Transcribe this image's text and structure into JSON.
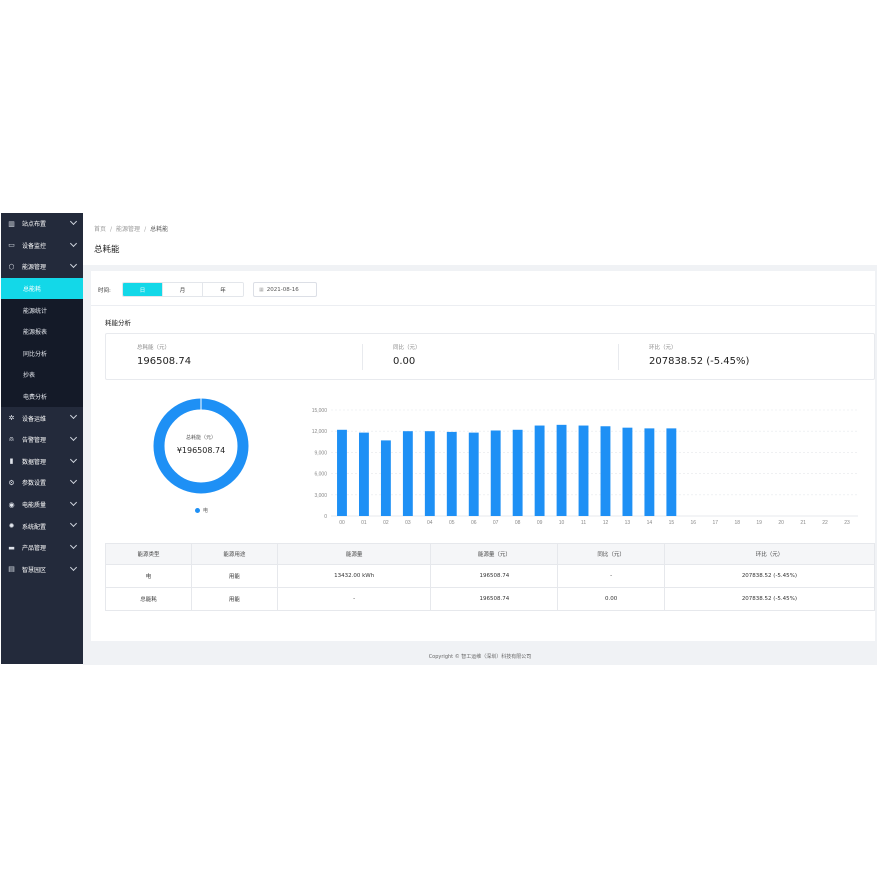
{
  "sidebar": {
    "items": [
      {
        "label": "站点布置",
        "icon": "chart-icon"
      },
      {
        "label": "设备监控",
        "icon": "monitor-icon"
      },
      {
        "label": "能源管理",
        "icon": "energy-icon",
        "open": true,
        "children": [
          "总能耗",
          "能源统计",
          "能源报表",
          "同比分析",
          "抄表",
          "电费分析"
        ]
      },
      {
        "label": "设备运维",
        "icon": "gear-icon"
      },
      {
        "label": "告警管理",
        "icon": "bell-icon"
      },
      {
        "label": "数据管理",
        "icon": "bar-icon"
      },
      {
        "label": "参数设置",
        "icon": "settings-icon"
      },
      {
        "label": "电能质量",
        "icon": "power-icon"
      },
      {
        "label": "系统配置",
        "icon": "cog-icon"
      },
      {
        "label": "产品管理",
        "icon": "box-icon"
      },
      {
        "label": "智慧园区",
        "icon": "building-icon"
      }
    ],
    "active_child": "总能耗"
  },
  "breadcrumb": [
    "首页",
    "能源管理",
    "总耗能"
  ],
  "page_title": "总耗能",
  "filter": {
    "label": "时间:",
    "options": [
      "日",
      "月",
      "年"
    ],
    "selected": "日",
    "date": "2021-08-16"
  },
  "section_title": "耗能分析",
  "stats": [
    {
      "label": "总耗能（元）",
      "value": "196508.74"
    },
    {
      "label": "同比（元）",
      "value": "0.00"
    },
    {
      "label": "环比（元）",
      "value": "207838.52 (-5.45%)"
    }
  ],
  "donut": {
    "label": "总耗能（元）",
    "value": "¥196508.74",
    "legend": "电",
    "color": "#1e90f5"
  },
  "chart_data": {
    "type": "bar",
    "categories": [
      "00",
      "01",
      "02",
      "03",
      "04",
      "05",
      "06",
      "07",
      "08",
      "09",
      "10",
      "11",
      "12",
      "13",
      "14",
      "15",
      "16",
      "17",
      "18",
      "19",
      "20",
      "21",
      "22",
      "23"
    ],
    "values": [
      12200,
      11800,
      10700,
      12000,
      12000,
      11900,
      11800,
      12100,
      12200,
      12800,
      12900,
      12800,
      12700,
      12500,
      12400,
      12400,
      null,
      null,
      null,
      null,
      null,
      null,
      null,
      null
    ],
    "ylim": [
      0,
      15000
    ],
    "yticks": [
      "0",
      "3,000",
      "6,000",
      "9,000",
      "12,000",
      "15,000"
    ],
    "color": "#1e90f5"
  },
  "table": {
    "headers": [
      "能源类型",
      "能源用途",
      "能源量",
      "能源量（元）",
      "同比（元）",
      "环比（元）"
    ],
    "rows": [
      [
        "电",
        "用能",
        "13432.00 kWh",
        "196508.74",
        "-",
        "207838.52 (-5.45%)"
      ],
      [
        "总能耗",
        "用能",
        "-",
        "196508.74",
        "0.00",
        "207838.52 (-5.45%)"
      ]
    ]
  },
  "footer": "Copyright © 智工运维（深圳）科技有限公司"
}
